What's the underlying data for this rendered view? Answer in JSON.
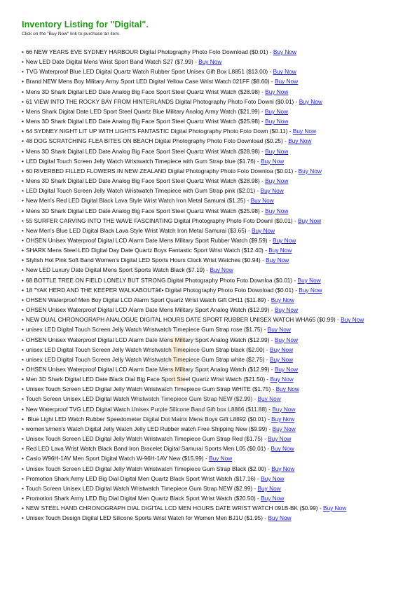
{
  "header": {
    "title": "Inventory Listing for \"Digital\".",
    "subtitle": "Click on the \"Buy Now\" link to purchase an item."
  },
  "buy_label": "Buy Now",
  "colors": {
    "title": "#1f9a13",
    "link": "#1a1ae0"
  },
  "items": [
    {
      "text": "66 NEW YEARS EVE SYDNEY HARBOUR Digital Photography Photo Foto Download ($0.01) - "
    },
    {
      "text": "New LED Date Digital Mens Wrist Sport Band Watch S27 ($7.99) - "
    },
    {
      "text": "TVG Waterproof Blue LED Digital Quartz Watch Rubber Sport Unisex Gift Box L8851 ($13.00) - "
    },
    {
      "text": "Brand NEW Mens Boy Military Army Sport LED Digital Yellow Case Wrist Watch 021FF ($8.60) - "
    },
    {
      "text": "Mens 3D Shark Digital LED Date Analog Big Face Sport Steel Quartz Wrist Watch ($28.98) - "
    },
    {
      "text": "61 VIEW INTO THE ROCKY BAY FROM HINTERLANDS Digital Photography Photo Foto Downl ($0.01) - "
    },
    {
      "text": "Mens Shark Digital Date LED Sport Steel Quartz Blue Military Analog Army Watch ($21.99) - "
    },
    {
      "text": "Mens 3D Shark Digital LED Date Analog Big Face Sport Steel Quartz Wrist Watch ($25.98) - "
    },
    {
      "text": "64 SYDNEY NIGHT LIT UP WITH LIGHTS FANTASTIC Digital Photography Photo Foto Down ($0.11) - "
    },
    {
      "text": "48 DOG SCRATCHING FLEA BITES ON BEACH Digital Photography Photo Foto Download ($0.25) - "
    },
    {
      "text": "Mens 3D Shark Digital LED Date Analog Big Face Sport Steel Quartz Wrist Watch ($28.98) - "
    },
    {
      "text": "LED Digital Touch Screen Jelly Watch Wristwatch Timepiece with Gum Strap blue ($1.76) - "
    },
    {
      "text": "60 RIVERBED FILLED FLOWERS IN NEW ZEALAND Digital Photography Photo Foto Downloa ($0.01) - "
    },
    {
      "text": "Mens 3D Shark Digital LED Date Analog Big Face Sport Steel Quartz Wrist Watch ($28.98) - "
    },
    {
      "text": "LED Digital Touch Screen Jelly Watch Wristwatch Timepiece with Gum Strap pink ($2.01) - "
    },
    {
      "text": "New Men's Red LED Digital Black Lava Style Wrist Watch Iron Metal Samurai ($1.25) - "
    },
    {
      "text": "Mens 3D Shark Digital LED Date Analog Big Face Sport Steel Quartz Wrist Watch ($25.98) - "
    },
    {
      "text": "55 SURFER CARVING INTO THE WAVE FASCINATING Digital Photography Photo Foto Downl ($0.01) - "
    },
    {
      "text": "New Men's Blue LED Digital Black Lava Style Wrist Watch Iron Metal Samurai ($3.65) - "
    },
    {
      "text": "OHSEN Unisex Waterproof Digital LCD Alarm Date Mens Military Sport Rubber Watch ($9.59) - "
    },
    {
      "text": "SHARK Mens Steel LED Digital Day Date Quartz Boys Fantastic Sport Wrist Watch ($12.40) - "
    },
    {
      "text": "Stylish Hot Pink Soft Band Women's Digital LED Sports Hours Clock Wrist Watches ($0.94) - "
    },
    {
      "text": "New LED Luxury Date Digital Mens Sport Sports Watch Black ($7.19) - "
    },
    {
      "text": "68 BOTTLE TREE ON FIELD LONELY BUT STRONG Digital Photography Photo Foto Downloa ($0.01) - "
    },
    {
      "text": "18 \"YAK HERD AND THE KEEPER WALKABOUTâ€• Digital Photography Photo Foto Download ($0.01) - "
    },
    {
      "text": "OHSEN Waterproof Men Boy Digital LCD Alarm Sport Quartz Wrist Watch Gift OH11  ($11.89) - "
    },
    {
      "text": "OHSEN Unisex Waterproof Digital LCD Alarm Date Mens Military Sport Analog Watch ($12.99) - "
    },
    {
      "text": "NEW DUAL CHRONOGRAPH ANALOGUE DIGITAL HOURS DATE SPORT RUBBER UNISEX WATCH WHA65 ($0.99) - ",
      "wrap": true
    },
    {
      "text": "unisex LED Digital Touch Screen Jelly Watch Wristwatch Timepiece Gum Strap rose ($1.75) - "
    },
    {
      "text": "OHSEN Unisex Waterproof Digital LCD Alarm Date Mens Military Sport Analog Watch ($12.99) - "
    },
    {
      "text": "unisex LED Digital Touch Screen Jelly Watch Wristwatch Timepiece Gum Strap black ($2.00) - "
    },
    {
      "text": "unisex LED Digital Touch Screen Jelly Watch Wristwatch Timepiece Gum Strap white ($2.75) - "
    },
    {
      "text": "OHSEN Unisex Waterproof Digital LCD Alarm Date Mens Military Sport Analog Watch ($12.99) - "
    },
    {
      "text": "Men 3D Shark Digital LED Date Black Dial Big Face Sport Steel Quartz Wrist Watch ($21.50) - "
    },
    {
      "text": "Unisex Touch Screen LED Digital Jelly Watch Wristwatch Timepiece Gum Strap WHITE ($1.75) - "
    },
    {
      "text": "Touch Screen Unisex LED Digital Watch Wristwatch Timepiece Gum Strap NEW ($2.99) - "
    },
    {
      "text": "New Waterproof TVG LED Digital Watch Unisex Purple Silicone Band Gift box L8866 ($11.88) - "
    },
    {
      "text": " Blue Light LED Watch Rubber Speedometer Digital Dot Matrix Mens Boys Gift L8892 ($0.01) - "
    },
    {
      "text": "women's/men's Watch Digital Jelly Watch Jelly LED Rubber watch Free Shipping New ($9.99) - "
    },
    {
      "text": "Unisex Touch Screen LED Digital Jelly Watch Wristwatch Timepiece Gum Strap Red ($1.75) - "
    },
    {
      "text": "Red LED Lava Wrist Watch Black Band Iron Bracelet Digital Samurai Sports Men L05 ($0.01) - "
    },
    {
      "text": "Casio W96H-1AV Men Sport Digital Watch W-96H-1AV New ($15.99) - "
    },
    {
      "text": "Unisex Touch Screen LED Digital Jelly Watch Wristwatch Timepiece Gum Strap Black ($2.00) - "
    },
    {
      "text": "Promotion Shark Army LED Big Dial Digital Men Quartz Black Sport Wrist Watch ($17.16) - "
    },
    {
      "text": "Touch Screen Unisex LED Digital Watch Wristwatch Timepiece Gum Strap NEW ($2.99) - "
    },
    {
      "text": "Promotion Shark Army LED Big Dial Digital Men Quartz Black Sport Wrist Watch ($20.50) - "
    },
    {
      "text": "NEW STEEL HAND CHRONOGRAPH DIAL DIGITAL LCD MEN HOURS DATE WRIST WATCH 091B-BK ($0.99) - ",
      "wrap": true
    },
    {
      "text": "Unisex Touch Design Digital LED Silicone Sports Wrist Watch for Women Men BJ1U ($1.95) - "
    }
  ]
}
